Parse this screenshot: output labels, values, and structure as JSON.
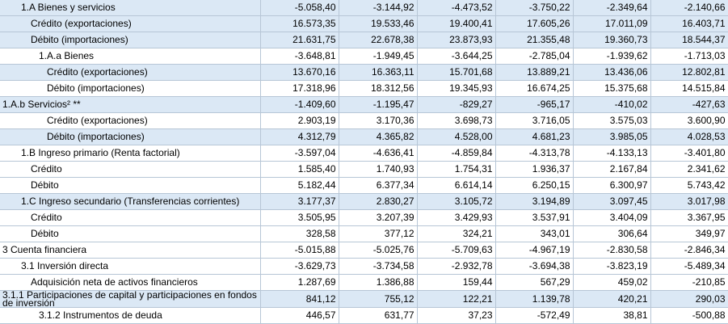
{
  "rows": [
    {
      "label": "1.A Bienes y servicios",
      "indent": 1,
      "bg": "blue",
      "values": [
        "-5.058,40",
        "-3.144,92",
        "-4.473,52",
        "-3.750,22",
        "-2.349,64",
        "-2.140,66"
      ]
    },
    {
      "label": "Crédito (exportaciones)",
      "indent": 2,
      "bg": "blue",
      "values": [
        "16.573,35",
        "19.533,46",
        "19.400,41",
        "17.605,26",
        "17.011,09",
        "16.403,71"
      ]
    },
    {
      "label": "Débito (importaciones)",
      "indent": 2,
      "bg": "blue",
      "values": [
        "21.631,75",
        "22.678,38",
        "23.873,93",
        "21.355,48",
        "19.360,73",
        "18.544,37"
      ]
    },
    {
      "label": "1.A.a Bienes",
      "indent": 3,
      "bg": "white",
      "values": [
        "-3.648,81",
        "-1.949,45",
        "-3.644,25",
        "-2.785,04",
        "-1.939,62",
        "-1.713,03"
      ]
    },
    {
      "label": "Crédito (exportaciones)",
      "indent": 4,
      "bg": "blue",
      "values": [
        "13.670,16",
        "16.363,11",
        "15.701,68",
        "13.889,21",
        "13.436,06",
        "12.802,81"
      ]
    },
    {
      "label": "Débito (importaciones)",
      "indent": 4,
      "bg": "white",
      "values": [
        "17.318,96",
        "18.312,56",
        "19.345,93",
        "16.674,25",
        "15.375,68",
        "14.515,84"
      ]
    },
    {
      "label": "1.A.b Servicios² **",
      "indent": 0,
      "bg": "blue",
      "values": [
        "-1.409,60",
        "-1.195,47",
        "-829,27",
        "-965,17",
        "-410,02",
        "-427,63"
      ]
    },
    {
      "label": "Crédito (exportaciones)",
      "indent": 4,
      "bg": "white",
      "values": [
        "2.903,19",
        "3.170,36",
        "3.698,73",
        "3.716,05",
        "3.575,03",
        "3.600,90"
      ]
    },
    {
      "label": "Débito (importaciones)",
      "indent": 4,
      "bg": "blue",
      "values": [
        "4.312,79",
        "4.365,82",
        "4.528,00",
        "4.681,23",
        "3.985,05",
        "4.028,53"
      ]
    },
    {
      "label": "1.B Ingreso primario (Renta factorial)",
      "indent": 1,
      "bg": "white",
      "values": [
        "-3.597,04",
        "-4.636,41",
        "-4.859,84",
        "-4.313,78",
        "-4.133,13",
        "-3.401,80"
      ]
    },
    {
      "label": "Crédito",
      "indent": 2,
      "bg": "white",
      "values": [
        "1.585,40",
        "1.740,93",
        "1.754,31",
        "1.936,37",
        "2.167,84",
        "2.341,62"
      ]
    },
    {
      "label": "Débito",
      "indent": 2,
      "bg": "white",
      "values": [
        "5.182,44",
        "6.377,34",
        "6.614,14",
        "6.250,15",
        "6.300,97",
        "5.743,42"
      ]
    },
    {
      "label": "1.C Ingreso secundario (Transferencias corrientes)",
      "indent": 1,
      "bg": "blue",
      "values": [
        "3.177,37",
        "2.830,27",
        "3.105,72",
        "3.194,89",
        "3.097,45",
        "3.017,98"
      ]
    },
    {
      "label": "Crédito",
      "indent": 2,
      "bg": "white",
      "values": [
        "3.505,95",
        "3.207,39",
        "3.429,93",
        "3.537,91",
        "3.404,09",
        "3.367,95"
      ]
    },
    {
      "label": "Débito",
      "indent": 2,
      "bg": "white",
      "values": [
        "328,58",
        "377,12",
        "324,21",
        "343,01",
        "306,64",
        "349,97"
      ]
    },
    {
      "label": "3 Cuenta financiera",
      "indent": 0,
      "bg": "white",
      "values": [
        "-5.015,88",
        "-5.025,76",
        "-5.709,63",
        "-4.967,19",
        "-2.830,58",
        "-2.846,34"
      ]
    },
    {
      "label": "3.1 Inversión directa",
      "indent": 1,
      "bg": "white",
      "values": [
        "-3.629,73",
        "-3.734,58",
        "-2.932,78",
        "-3.694,38",
        "-3.823,19",
        "-5.489,34"
      ]
    },
    {
      "label": "Adquisición neta de activos financieros",
      "indent": 2,
      "bg": "white",
      "values": [
        "1.287,69",
        "1.386,88",
        "159,44",
        "567,29",
        "459,02",
        "-210,85"
      ]
    },
    {
      "label": "3.1.1 Participaciones de capital y participaciones en fondos de inversión",
      "indent": 0,
      "bg": "blue",
      "wrap": true,
      "values": [
        "841,12",
        "755,12",
        "122,21",
        "1.139,78",
        "420,21",
        "290,03"
      ]
    },
    {
      "label": "3.1.2 Instrumentos de deuda",
      "indent": 3,
      "bg": "white",
      "values": [
        "446,57",
        "631,77",
        "37,23",
        "-572,49",
        "38,81",
        "-500,88"
      ]
    }
  ]
}
